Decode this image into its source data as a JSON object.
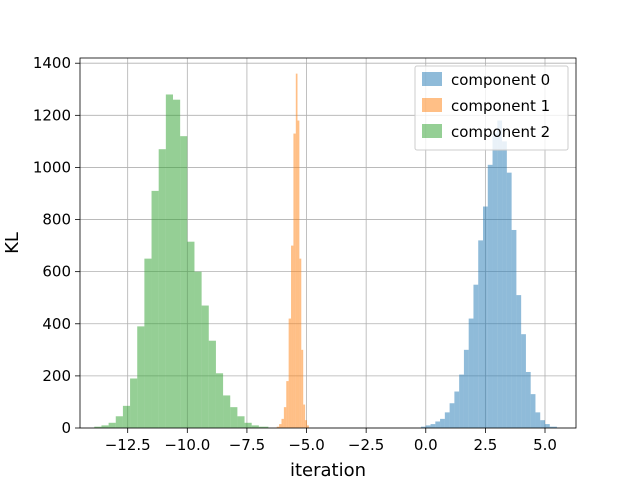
{
  "chart_data": {
    "type": "histogram",
    "xlabel": "iteration",
    "ylabel": "KL",
    "xlim": [
      -14.5,
      6.3
    ],
    "ylim": [
      0,
      1420
    ],
    "x_ticks": [
      -12.5,
      -10.0,
      -7.5,
      -5.0,
      -2.5,
      0.0,
      2.5,
      5.0
    ],
    "x_tick_labels": [
      "−12.5",
      "−10.0",
      "−7.5",
      "−5.0",
      "−2.5",
      "0.0",
      "2.5",
      "5.0"
    ],
    "y_ticks": [
      0,
      200,
      400,
      600,
      800,
      1000,
      1200,
      1400
    ],
    "y_tick_labels": [
      "0",
      "200",
      "400",
      "600",
      "800",
      "1000",
      "1200",
      "1400"
    ],
    "grid": true,
    "legend_position": "top-right",
    "series": [
      {
        "name": "component 0",
        "color": "#1f77b4",
        "opacity": 0.5,
        "bins": [
          {
            "x0": -0.2,
            "x1": 0.0,
            "y": 5
          },
          {
            "x0": 0.0,
            "x1": 0.2,
            "y": 10
          },
          {
            "x0": 0.2,
            "x1": 0.4,
            "y": 15
          },
          {
            "x0": 0.4,
            "x1": 0.6,
            "y": 25
          },
          {
            "x0": 0.6,
            "x1": 0.8,
            "y": 35
          },
          {
            "x0": 0.8,
            "x1": 1.0,
            "y": 60
          },
          {
            "x0": 1.0,
            "x1": 1.2,
            "y": 95
          },
          {
            "x0": 1.2,
            "x1": 1.4,
            "y": 140
          },
          {
            "x0": 1.4,
            "x1": 1.6,
            "y": 205
          },
          {
            "x0": 1.6,
            "x1": 1.8,
            "y": 300
          },
          {
            "x0": 1.8,
            "x1": 2.0,
            "y": 420
          },
          {
            "x0": 2.0,
            "x1": 2.2,
            "y": 550
          },
          {
            "x0": 2.2,
            "x1": 2.4,
            "y": 720
          },
          {
            "x0": 2.4,
            "x1": 2.6,
            "y": 850
          },
          {
            "x0": 2.6,
            "x1": 2.8,
            "y": 1010
          },
          {
            "x0": 2.8,
            "x1": 3.0,
            "y": 1130
          },
          {
            "x0": 3.0,
            "x1": 3.2,
            "y": 1180
          },
          {
            "x0": 3.2,
            "x1": 3.4,
            "y": 1100
          },
          {
            "x0": 3.4,
            "x1": 3.6,
            "y": 980
          },
          {
            "x0": 3.6,
            "x1": 3.8,
            "y": 760
          },
          {
            "x0": 3.8,
            "x1": 4.0,
            "y": 510
          },
          {
            "x0": 4.0,
            "x1": 4.2,
            "y": 360
          },
          {
            "x0": 4.2,
            "x1": 4.4,
            "y": 215
          },
          {
            "x0": 4.4,
            "x1": 4.6,
            "y": 130
          },
          {
            "x0": 4.6,
            "x1": 4.8,
            "y": 60
          },
          {
            "x0": 4.8,
            "x1": 5.0,
            "y": 30
          },
          {
            "x0": 5.0,
            "x1": 5.2,
            "y": 15
          },
          {
            "x0": 5.2,
            "x1": 5.5,
            "y": 5
          }
        ]
      },
      {
        "name": "component 1",
        "color": "#ff7f0e",
        "opacity": 0.5,
        "bins": [
          {
            "x0": -6.25,
            "x1": -6.15,
            "y": 5
          },
          {
            "x0": -6.15,
            "x1": -6.05,
            "y": 15
          },
          {
            "x0": -6.05,
            "x1": -5.95,
            "y": 35
          },
          {
            "x0": -5.95,
            "x1": -5.85,
            "y": 80
          },
          {
            "x0": -5.85,
            "x1": -5.75,
            "y": 180
          },
          {
            "x0": -5.75,
            "x1": -5.65,
            "y": 420
          },
          {
            "x0": -5.65,
            "x1": -5.55,
            "y": 700
          },
          {
            "x0": -5.55,
            "x1": -5.45,
            "y": 1130
          },
          {
            "x0": -5.45,
            "x1": -5.38,
            "y": 1360
          },
          {
            "x0": -5.38,
            "x1": -5.3,
            "y": 1180
          },
          {
            "x0": -5.3,
            "x1": -5.22,
            "y": 650
          },
          {
            "x0": -5.22,
            "x1": -5.14,
            "y": 300
          },
          {
            "x0": -5.14,
            "x1": -5.06,
            "y": 90
          },
          {
            "x0": -5.06,
            "x1": -4.98,
            "y": 30
          },
          {
            "x0": -4.98,
            "x1": -4.9,
            "y": 10
          }
        ]
      },
      {
        "name": "component 2",
        "color": "#2ca02c",
        "opacity": 0.5,
        "bins": [
          {
            "x0": -13.9,
            "x1": -13.6,
            "y": 5
          },
          {
            "x0": -13.6,
            "x1": -13.3,
            "y": 10
          },
          {
            "x0": -13.3,
            "x1": -13.0,
            "y": 20
          },
          {
            "x0": -13.0,
            "x1": -12.7,
            "y": 45
          },
          {
            "x0": -12.7,
            "x1": -12.4,
            "y": 85
          },
          {
            "x0": -12.4,
            "x1": -12.1,
            "y": 190
          },
          {
            "x0": -12.1,
            "x1": -11.8,
            "y": 390
          },
          {
            "x0": -11.8,
            "x1": -11.5,
            "y": 650
          },
          {
            "x0": -11.5,
            "x1": -11.2,
            "y": 910
          },
          {
            "x0": -11.2,
            "x1": -10.9,
            "y": 1070
          },
          {
            "x0": -10.9,
            "x1": -10.6,
            "y": 1280
          },
          {
            "x0": -10.6,
            "x1": -10.3,
            "y": 1260
          },
          {
            "x0": -10.3,
            "x1": -10.0,
            "y": 1120
          },
          {
            "x0": -10.0,
            "x1": -9.7,
            "y": 715
          },
          {
            "x0": -9.7,
            "x1": -9.4,
            "y": 600
          },
          {
            "x0": -9.4,
            "x1": -9.1,
            "y": 470
          },
          {
            "x0": -9.1,
            "x1": -8.8,
            "y": 335
          },
          {
            "x0": -8.8,
            "x1": -8.5,
            "y": 210
          },
          {
            "x0": -8.5,
            "x1": -8.2,
            "y": 125
          },
          {
            "x0": -8.2,
            "x1": -7.9,
            "y": 80
          },
          {
            "x0": -7.9,
            "x1": -7.6,
            "y": 45
          },
          {
            "x0": -7.6,
            "x1": -7.3,
            "y": 20
          },
          {
            "x0": -7.3,
            "x1": -7.0,
            "y": 10
          },
          {
            "x0": -7.0,
            "x1": -6.6,
            "y": 5
          }
        ]
      }
    ]
  }
}
